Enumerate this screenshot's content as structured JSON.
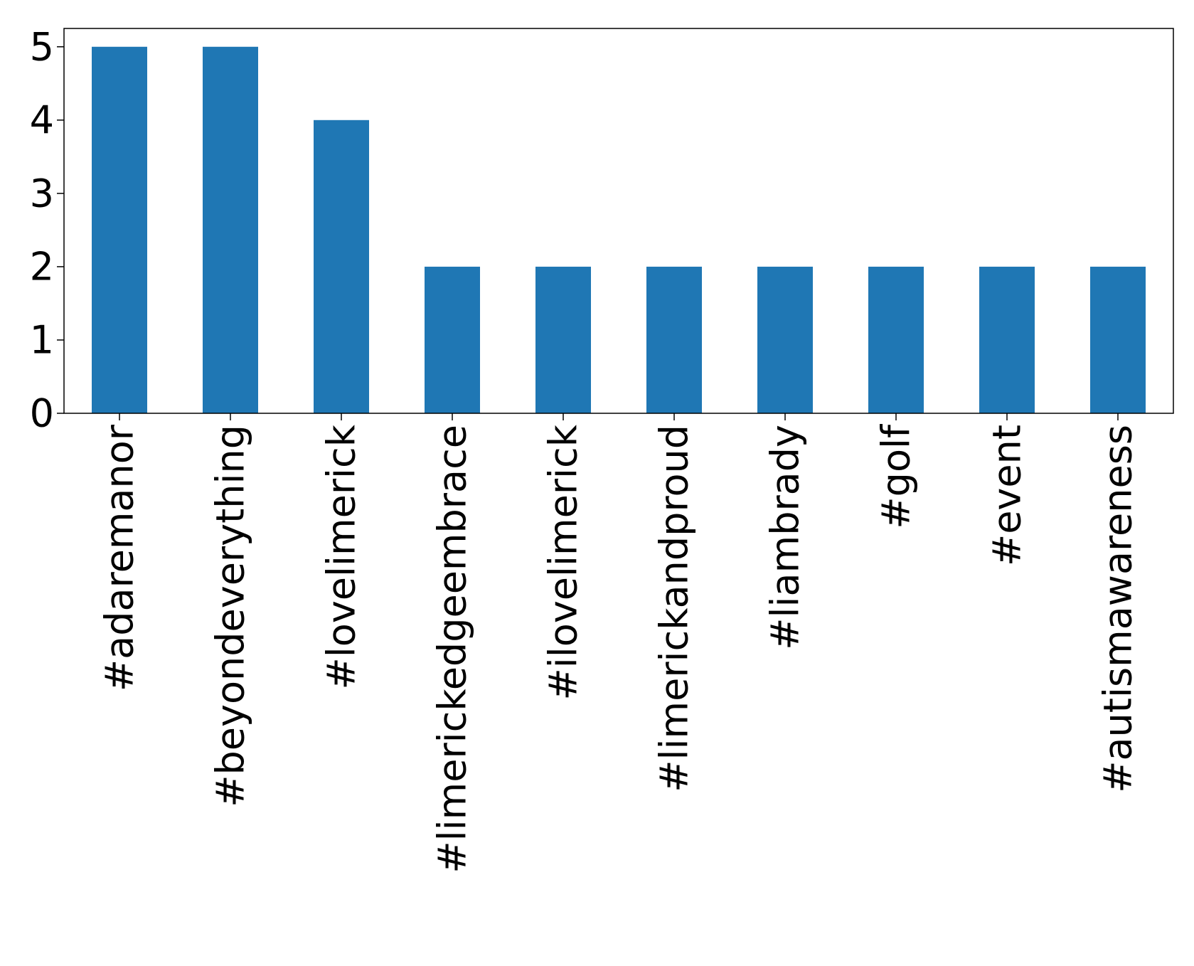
{
  "chart_data": {
    "type": "bar",
    "title": "",
    "xlabel": "",
    "ylabel": "",
    "categories": [
      "#adaremanor",
      "#beyondeverything",
      "#lovelimerick",
      "#limerickedgeembrace",
      "#ilovelimerick",
      "#limerickandproud",
      "#liambrady",
      "#golf",
      "#event",
      "#autismawareness"
    ],
    "values": [
      5,
      5,
      4,
      2,
      2,
      2,
      2,
      2,
      2,
      2
    ],
    "ylim": [
      0,
      5.25
    ],
    "yticks": [
      0,
      1,
      2,
      3,
      4,
      5
    ],
    "ytick_labels": [
      "0",
      "1",
      "2",
      "3",
      "4",
      "5"
    ],
    "bar_color": "#1f77b4",
    "grid": false,
    "legend": "none"
  }
}
